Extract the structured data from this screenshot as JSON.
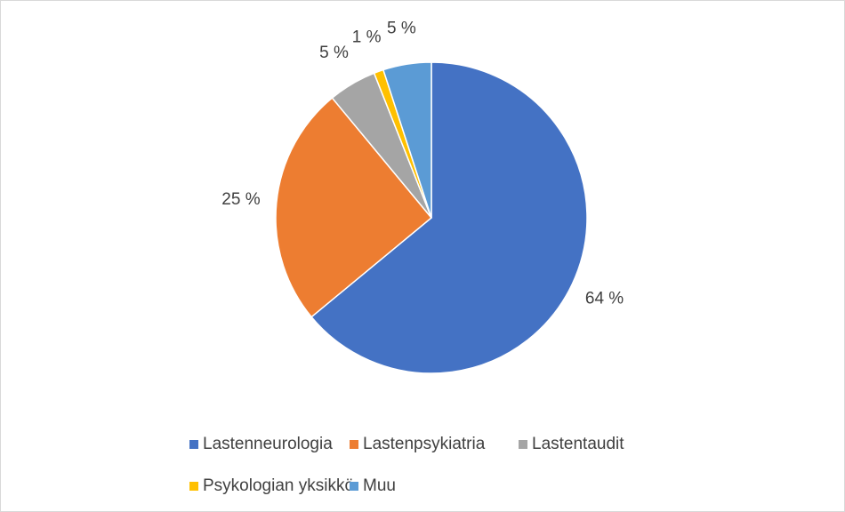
{
  "chart_data": {
    "type": "pie",
    "categories": [
      "Lastenneurologia",
      "Lastenpsykiatria",
      "Lastentaudit",
      "Psykologian yksikkö",
      "Muu"
    ],
    "values": [
      64,
      25,
      5,
      1,
      5
    ],
    "value_labels": [
      "64 %",
      "25 %",
      "5 %",
      "1 %",
      "5 %"
    ],
    "colors": [
      "#4472c4",
      "#ed7d31",
      "#a5a5a5",
      "#ffc000",
      "#5b9bd5"
    ],
    "legend": "bottom"
  }
}
